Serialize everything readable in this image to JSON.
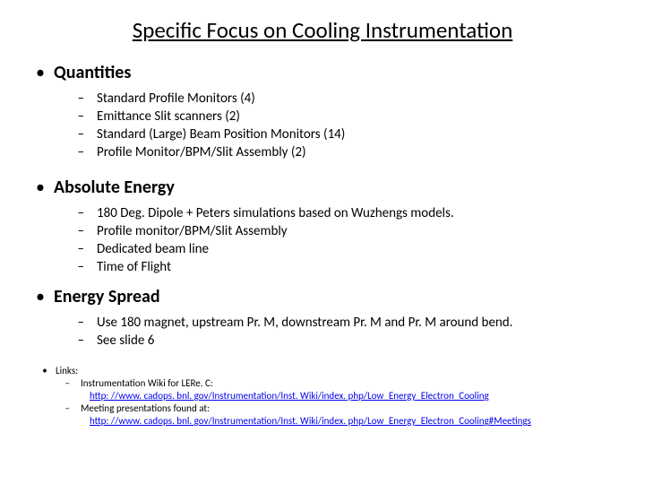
{
  "title": "Specific Focus on Cooling Instrumentation",
  "sections": [
    {
      "heading": "Quantities",
      "items": [
        "Standard Profile Monitors (4)",
        "Emittance Slit scanners (2)",
        "Standard (Large) Beam Position Monitors (14)",
        "Profile Monitor/BPM/Slit Assembly (2)"
      ]
    },
    {
      "heading": "Absolute Energy",
      "items": [
        "180 Deg. Dipole + Peters simulations based on Wuzhengs models.",
        "Profile monitor/BPM/Slit Assembly",
        "Dedicated beam line",
        "Time of Flight"
      ]
    },
    {
      "heading": "Energy Spread",
      "items": [
        "Use 180 magnet, upstream Pr. M, downstream Pr. M and Pr. M around bend.",
        "See slide 6"
      ]
    }
  ],
  "links_section": {
    "label": "Links:",
    "entries": [
      {
        "text": "Instrumentation Wiki for LERe. C:",
        "url": "http: //www. cadops. bnl. gov/Instrumentation/Inst. Wiki/index. php/Low_Energy_Electron_Cooling"
      },
      {
        "text": "Meeting presentations found at:",
        "url": "http: //www. cadops. bnl. gov/Instrumentation/Inst. Wiki/index. php/Low_Energy_Electron_Cooling#Meetings"
      }
    ]
  }
}
